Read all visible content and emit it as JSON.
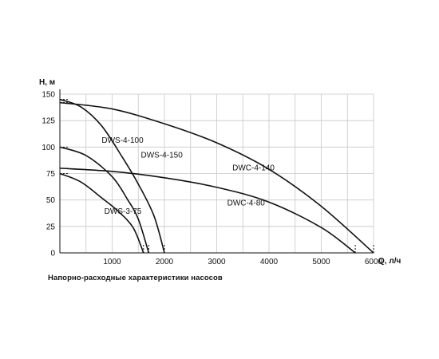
{
  "chart_data": {
    "type": "line",
    "caption": "Напорно-расходные характеристики насосов",
    "xlabel": "Q, л/ч",
    "ylabel": "H, м",
    "xlim": [
      0,
      6000
    ],
    "ylim": [
      0,
      150
    ],
    "xticks": [
      {
        "v": 1000,
        "label": "1000"
      },
      {
        "v": 2000,
        "label": "2000"
      },
      {
        "v": 3000,
        "label": "3000"
      },
      {
        "v": 4000,
        "label": "4000"
      },
      {
        "v": 5000,
        "label": "5000"
      },
      {
        "v": 6000,
        "label": "6000"
      }
    ],
    "yticks": [
      {
        "v": 0,
        "label": "0"
      },
      {
        "v": 25,
        "label": "25"
      },
      {
        "v": 50,
        "label": "50"
      },
      {
        "v": 75,
        "label": "75"
      },
      {
        "v": 100,
        "label": "100"
      },
      {
        "v": 125,
        "label": "125"
      },
      {
        "v": 150,
        "label": "150"
      }
    ],
    "x_zero_label": "0",
    "grid": true,
    "series": [
      {
        "name": "DWS-4-150",
        "x": [
          0,
          400,
          800,
          1200,
          1500,
          1800,
          2000
        ],
        "y": [
          145,
          138,
          120,
          90,
          65,
          35,
          0
        ],
        "label_at": [
          1550,
          90
        ]
      },
      {
        "name": "DWC-4-140",
        "x": [
          0,
          1000,
          2000,
          3000,
          4000,
          5000,
          6000
        ],
        "y": [
          142,
          136,
          122,
          104,
          79,
          44,
          0
        ],
        "label_at": [
          3300,
          78
        ]
      },
      {
        "name": "DWS-4-100",
        "x": [
          0,
          500,
          1000,
          1300,
          1500,
          1700
        ],
        "y": [
          100,
          92,
          72,
          50,
          32,
          0
        ],
        "label_at": [
          800,
          104
        ]
      },
      {
        "name": "DWC-4-80",
        "x": [
          0,
          1000,
          2000,
          3000,
          4000,
          5000,
          5650
        ],
        "y": [
          80,
          77,
          71,
          62,
          48,
          24,
          0
        ],
        "label_at": [
          3200,
          45
        ]
      },
      {
        "name": "DWS-3-75",
        "x": [
          0,
          400,
          800,
          1100,
          1400,
          1600
        ],
        "y": [
          75,
          67,
          52,
          40,
          24,
          0
        ],
        "label_at": [
          850,
          37
        ]
      }
    ]
  }
}
